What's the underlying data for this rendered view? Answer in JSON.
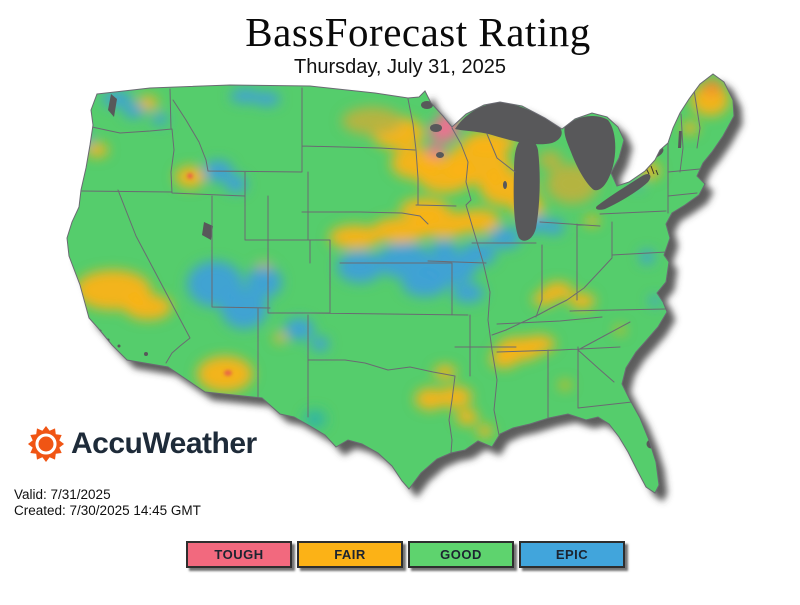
{
  "header": {
    "title": "BassForecast Rating",
    "subtitle": "Thursday, July 31, 2025"
  },
  "branding": {
    "logo_text": "AccuWeather",
    "logo_color": "#F05514",
    "wordmark_color": "#1E2B39"
  },
  "validity": {
    "valid_label": "Valid: 7/31/2025",
    "created_label": "Created: 7/30/2025 14:45 GMT"
  },
  "legend": {
    "items": [
      {
        "label": "TOUGH",
        "color": "#F2697E"
      },
      {
        "label": "FAIR",
        "color": "#FCB216"
      },
      {
        "label": "GOOD",
        "color": "#5ED36E"
      },
      {
        "label": "EPIC",
        "color": "#41A5DC"
      }
    ]
  },
  "map": {
    "region": "Contiguous United States",
    "palette": {
      "good": "#55CD6C",
      "fair": "#FCB216",
      "epic": "#3FA0D8",
      "tough": "#F26E92",
      "olive": "#B9B23E",
      "teal": "#2FB3A6",
      "deep_orange": "#F28E2B",
      "hot_spot": "#E8644A",
      "water": "#58585A",
      "border": "#6A6A72",
      "shadow": "#3F3F3F"
    },
    "blobs": [
      [
        148,
        103,
        10,
        7,
        "fair"
      ],
      [
        97,
        150,
        11,
        7,
        "fair"
      ],
      [
        113,
        290,
        38,
        20,
        "fair"
      ],
      [
        148,
        307,
        24,
        13,
        "fair"
      ],
      [
        190,
        177,
        15,
        11,
        "fair"
      ],
      [
        225,
        374,
        28,
        18,
        "fair"
      ],
      [
        264,
        269,
        9,
        7,
        "fair"
      ],
      [
        280,
        338,
        6,
        5,
        "fair"
      ],
      [
        355,
        237,
        26,
        12,
        "fair"
      ],
      [
        400,
        230,
        28,
        13,
        "fair"
      ],
      [
        443,
        224,
        28,
        14,
        "fair"
      ],
      [
        478,
        221,
        22,
        12,
        "fair"
      ],
      [
        424,
        209,
        24,
        11,
        "fair"
      ],
      [
        398,
        133,
        26,
        16,
        "fair"
      ],
      [
        415,
        163,
        24,
        16,
        "fair"
      ],
      [
        445,
        175,
        28,
        18,
        "fair"
      ],
      [
        478,
        163,
        32,
        22,
        "fair"
      ],
      [
        490,
        142,
        26,
        11,
        "fair"
      ],
      [
        508,
        188,
        28,
        18,
        "fair"
      ],
      [
        528,
        207,
        16,
        12,
        "fair"
      ],
      [
        572,
        184,
        26,
        20,
        "olive"
      ],
      [
        372,
        121,
        30,
        14,
        "olive"
      ],
      [
        550,
        160,
        12,
        9,
        "olive"
      ],
      [
        710,
        100,
        19,
        16,
        "fair"
      ],
      [
        712,
        87,
        11,
        8,
        "deep_orange"
      ],
      [
        690,
        128,
        8,
        6,
        "fair"
      ],
      [
        650,
        171,
        10,
        8,
        "fair"
      ],
      [
        592,
        221,
        7,
        5,
        "fair"
      ],
      [
        558,
        291,
        15,
        9,
        "fair"
      ],
      [
        582,
        301,
        13,
        8,
        "fair"
      ],
      [
        544,
        299,
        11,
        7,
        "fair"
      ],
      [
        519,
        349,
        23,
        12,
        "fair"
      ],
      [
        539,
        344,
        16,
        9,
        "fair"
      ],
      [
        504,
        359,
        14,
        9,
        "fair"
      ],
      [
        565,
        385,
        6,
        4,
        "fair"
      ],
      [
        620,
        330,
        5,
        4,
        "fair"
      ],
      [
        430,
        399,
        15,
        11,
        "fair"
      ],
      [
        455,
        397,
        17,
        11,
        "fair"
      ],
      [
        467,
        417,
        11,
        8,
        "fair"
      ],
      [
        445,
        372,
        11,
        7,
        "fair"
      ],
      [
        485,
        431,
        8,
        6,
        "fair"
      ],
      [
        117,
        99,
        15,
        8,
        "epic"
      ],
      [
        134,
        111,
        11,
        7,
        "epic"
      ],
      [
        85,
        139,
        6,
        7,
        "epic"
      ],
      [
        160,
        119,
        8,
        6,
        "epic"
      ],
      [
        245,
        96,
        15,
        7,
        "epic"
      ],
      [
        267,
        99,
        13,
        7,
        "epic"
      ],
      [
        218,
        171,
        15,
        11,
        "epic"
      ],
      [
        236,
        184,
        11,
        9,
        "epic"
      ],
      [
        215,
        284,
        28,
        23,
        "epic"
      ],
      [
        244,
        309,
        23,
        20,
        "epic"
      ],
      [
        264,
        282,
        18,
        16,
        "epic"
      ],
      [
        299,
        329,
        15,
        11,
        "epic"
      ],
      [
        320,
        344,
        9,
        7,
        "epic"
      ],
      [
        360,
        267,
        23,
        16,
        "epic"
      ],
      [
        405,
        261,
        28,
        18,
        "epic"
      ],
      [
        450,
        269,
        26,
        16,
        "epic"
      ],
      [
        425,
        284,
        23,
        13,
        "epic"
      ],
      [
        478,
        254,
        18,
        12,
        "epic"
      ],
      [
        505,
        238,
        16,
        11,
        "epic"
      ],
      [
        534,
        224,
        14,
        9,
        "epic"
      ],
      [
        554,
        227,
        10,
        8,
        "epic"
      ],
      [
        468,
        293,
        16,
        10,
        "epic"
      ],
      [
        444,
        249,
        13,
        9,
        "epic"
      ],
      [
        315,
        419,
        11,
        9,
        "teal"
      ],
      [
        647,
        257,
        7,
        7,
        "epic"
      ],
      [
        655,
        301,
        6,
        5,
        "epic"
      ],
      [
        638,
        186,
        4,
        4,
        "epic"
      ],
      [
        444,
        131,
        15,
        11,
        "tough"
      ],
      [
        450,
        117,
        11,
        7,
        "tough"
      ],
      [
        436,
        151,
        9,
        7,
        "tough"
      ]
    ],
    "spots": [
      [
        228,
        373,
        4,
        3,
        "hot_spot"
      ],
      [
        190,
        176,
        3,
        3,
        "hot_spot"
      ]
    ]
  }
}
